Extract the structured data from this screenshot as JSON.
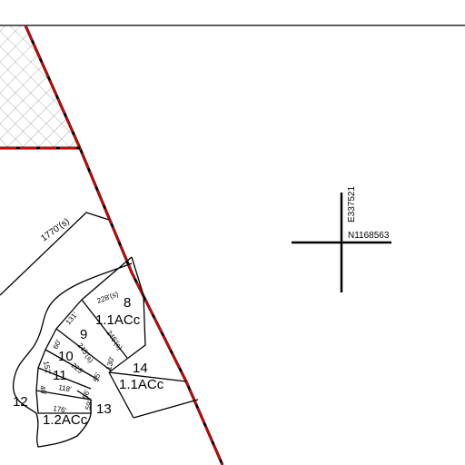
{
  "coordinates": {
    "easting": "E337521",
    "northing": "N1168563"
  },
  "boundary": {
    "label": "1770'(s)"
  },
  "parcels": [
    {
      "number": "8",
      "area": "1.1ACc"
    },
    {
      "number": "9"
    },
    {
      "number": "10"
    },
    {
      "number": "11"
    },
    {
      "number": "12",
      "area": "1.2ACc"
    },
    {
      "number": "13"
    },
    {
      "number": "14",
      "area": "1.1ACc"
    }
  ],
  "dimensions": [
    "228'(s)",
    "131'",
    "245'(s)",
    "60'",
    "245'(s)",
    "130'",
    "152'",
    "225'",
    "55'",
    "40'",
    "118'",
    "56'",
    "176'",
    "59'"
  ]
}
